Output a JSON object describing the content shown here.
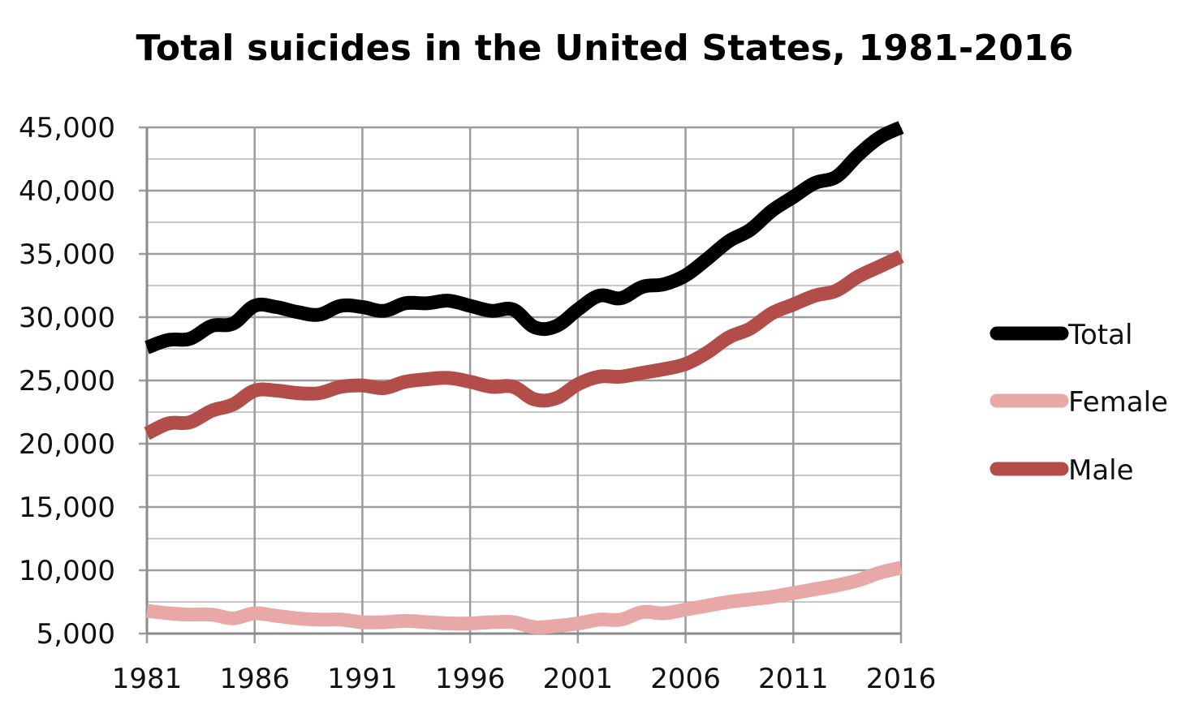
{
  "chart_data": {
    "type": "line",
    "title": "Total suicides in the United States, 1981-2016",
    "xlabel": "",
    "ylabel": "",
    "x": [
      1981,
      1982,
      1983,
      1984,
      1985,
      1986,
      1987,
      1988,
      1989,
      1990,
      1991,
      1992,
      1993,
      1994,
      1995,
      1996,
      1997,
      1998,
      1999,
      2000,
      2001,
      2002,
      2003,
      2004,
      2005,
      2006,
      2007,
      2008,
      2009,
      2010,
      2011,
      2012,
      2013,
      2014,
      2015,
      2016
    ],
    "xlim": [
      1981,
      2016
    ],
    "ylim": [
      5000,
      45000
    ],
    "x_ticks": [
      "1981",
      "1986",
      "1991",
      "1996",
      "2001",
      "2006",
      "2011",
      "2016"
    ],
    "y_ticks": [
      "5,000",
      "10,000",
      "15,000",
      "20,000",
      "25,000",
      "30,000",
      "35,000",
      "40,000",
      "45,000"
    ],
    "grid": true,
    "legend_position": "right",
    "series": [
      {
        "name": "Total",
        "color": "#000000",
        "values": [
          27600,
          28200,
          28300,
          29300,
          29500,
          30900,
          30800,
          30400,
          30200,
          30900,
          30800,
          30500,
          31100,
          31100,
          31300,
          30900,
          30500,
          30600,
          29200,
          29300,
          30600,
          31700,
          31500,
          32400,
          32600,
          33300,
          34600,
          36000,
          36900,
          38400,
          39500,
          40600,
          41100,
          42800,
          44200,
          45000
        ]
      },
      {
        "name": "Female",
        "color": "#e8a8a8",
        "values": [
          6800,
          6600,
          6500,
          6500,
          6200,
          6600,
          6400,
          6200,
          6100,
          6100,
          5900,
          5900,
          6000,
          5900,
          5800,
          5800,
          5900,
          5900,
          5500,
          5600,
          5800,
          6100,
          6100,
          6700,
          6600,
          6900,
          7200,
          7500,
          7700,
          7900,
          8200,
          8500,
          8800,
          9200,
          9800,
          10200
        ]
      },
      {
        "name": "Male",
        "color": "#b34d4a",
        "values": [
          20800,
          21600,
          21700,
          22600,
          23100,
          24200,
          24200,
          24000,
          24000,
          24500,
          24600,
          24400,
          24900,
          25100,
          25200,
          24900,
          24500,
          24500,
          23500,
          23600,
          24700,
          25300,
          25300,
          25600,
          25900,
          26300,
          27200,
          28400,
          29100,
          30300,
          31000,
          31700,
          32100,
          33200,
          34000,
          34800
        ]
      }
    ]
  }
}
